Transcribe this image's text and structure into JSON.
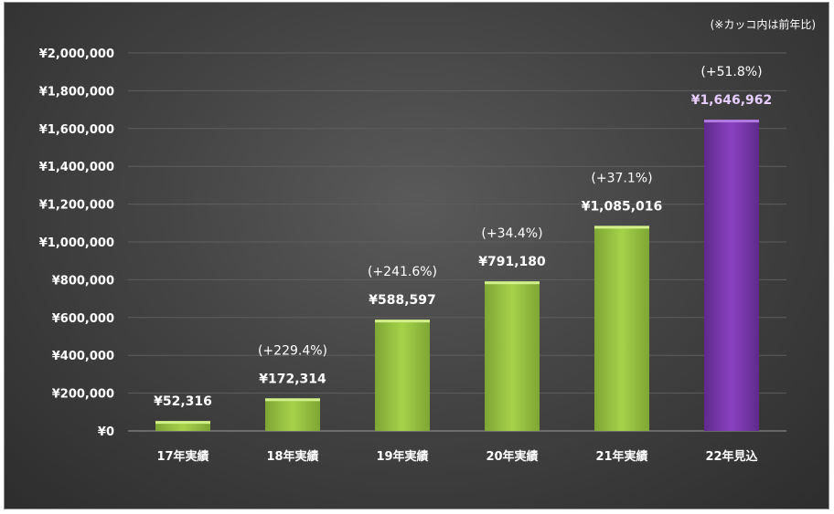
{
  "note": "(※カッコ内は前年比)",
  "chart_data": {
    "type": "bar",
    "categories": [
      "17年実績",
      "18年実績",
      "19年実績",
      "20年実績",
      "21年実績",
      "22年見込"
    ],
    "values": [
      52316,
      172314,
      588597,
      791180,
      1085016,
      1646962
    ],
    "value_labels": [
      "¥52,316",
      "¥172,314",
      "¥588,597",
      "¥791,180",
      "¥1,085,016",
      "¥1,646,962"
    ],
    "growth_labels": [
      "",
      "(+229.4%)",
      "(+241.6%)",
      "(+34.4%)",
      "(+37.1%)",
      "(+51.8%)"
    ],
    "y_ticks": [
      0,
      200000,
      400000,
      600000,
      800000,
      1000000,
      1200000,
      1400000,
      1600000,
      1800000,
      2000000
    ],
    "y_tick_labels": [
      "¥0",
      "¥200,000",
      "¥400,000",
      "¥600,000",
      "¥800,000",
      "¥1,000,000",
      "¥1,200,000",
      "¥1,400,000",
      "¥1,600,000",
      "¥1,800,000",
      "¥2,000,000"
    ],
    "ylim": [
      0,
      2000000
    ],
    "grid": true,
    "colors": {
      "actual": "#92c83e",
      "forecast": "#7030a0",
      "forecast_label": "#e6ccff"
    }
  }
}
